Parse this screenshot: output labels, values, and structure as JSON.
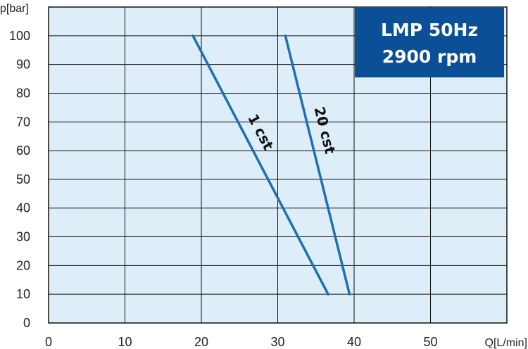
{
  "chart_data": {
    "type": "line",
    "xlabel": "Q[L/min]",
    "ylabel": "p[bar]",
    "xlim": [
      0,
      60
    ],
    "ylim": [
      0,
      110
    ],
    "xticks": [
      0,
      10,
      20,
      30,
      40,
      50
    ],
    "yticks": [
      0,
      10,
      20,
      30,
      40,
      50,
      60,
      70,
      80,
      90,
      100
    ],
    "grid": true,
    "plot_background": "#ddeef8",
    "line_color": "#1f6fb2",
    "badge": {
      "lines": [
        "LMP 50Hz",
        "2900 rpm"
      ],
      "color": "#0b4f97"
    },
    "series": [
      {
        "name": "1 cst",
        "x": [
          18.9,
          36.6
        ],
        "y": [
          100,
          10
        ]
      },
      {
        "name": "20 cst",
        "x": [
          31.0,
          39.4
        ],
        "y": [
          100,
          10
        ]
      }
    ]
  }
}
